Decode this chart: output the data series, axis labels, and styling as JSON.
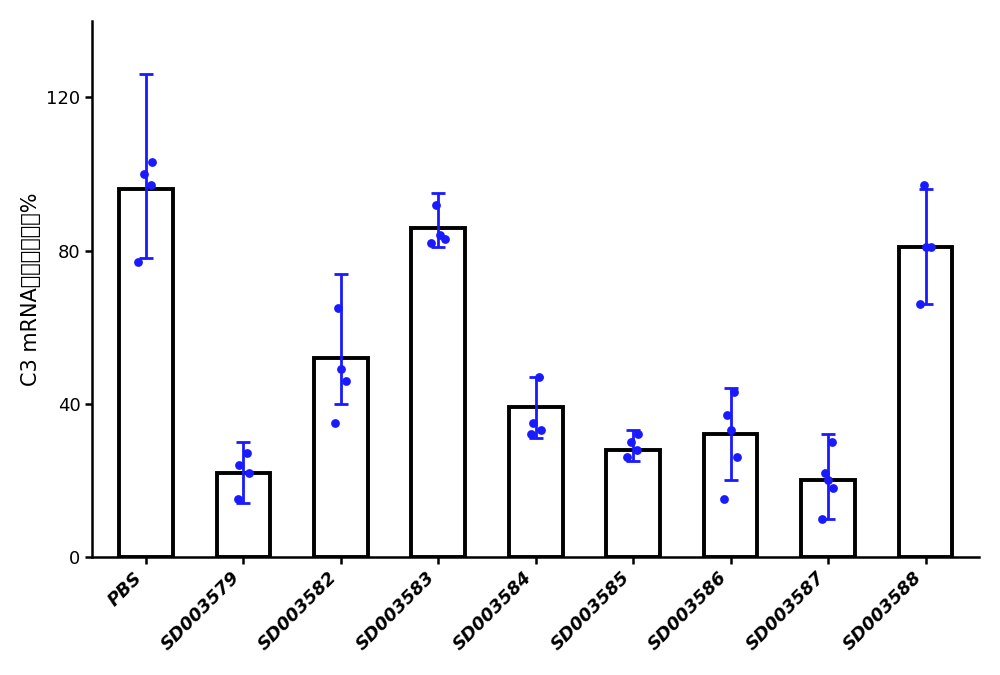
{
  "categories": [
    "PBS",
    "SD003579",
    "SD003582",
    "SD003583",
    "SD003584",
    "SD003585",
    "SD003586",
    "SD003587",
    "SD003588"
  ],
  "bar_means": [
    96,
    22,
    52,
    86,
    39,
    28,
    32,
    20,
    81
  ],
  "error_upper": [
    30,
    8,
    22,
    9,
    8,
    5,
    12,
    12,
    15
  ],
  "error_lower": [
    18,
    8,
    12,
    5,
    8,
    3,
    12,
    10,
    15
  ],
  "dot_data": [
    [
      77,
      97,
      100,
      103
    ],
    [
      15,
      22,
      24,
      27
    ],
    [
      35,
      46,
      49,
      65
    ],
    [
      82,
      83,
      84,
      92
    ],
    [
      32,
      33,
      35,
      47
    ],
    [
      26,
      28,
      30,
      32
    ],
    [
      15,
      26,
      33,
      37,
      43
    ],
    [
      10,
      18,
      20,
      22,
      30
    ],
    [
      66,
      81,
      81,
      97
    ]
  ],
  "dot_jitter": [
    [
      -0.08,
      0.05,
      -0.02,
      0.06
    ],
    [
      -0.06,
      0.06,
      -0.04,
      0.04
    ],
    [
      -0.06,
      0.05,
      0.0,
      -0.03
    ],
    [
      -0.07,
      0.07,
      0.02,
      -0.02
    ],
    [
      -0.05,
      0.05,
      -0.03,
      0.03
    ],
    [
      -0.06,
      0.04,
      -0.02,
      0.05
    ],
    [
      -0.07,
      0.06,
      0.0,
      -0.04,
      0.03
    ],
    [
      -0.06,
      0.05,
      0.0,
      -0.03,
      0.04
    ],
    [
      -0.06,
      0.06,
      0.0,
      -0.02
    ]
  ],
  "ylabel": "C3 mRNA剩余表达水平%",
  "ylim": [
    0,
    140
  ],
  "yticks": [
    0,
    40,
    80,
    120
  ],
  "bar_color": "#ffffff",
  "bar_edgecolor": "#000000",
  "dot_color": "#1a1aff",
  "errorbar_color": "#1a1aff",
  "bar_linewidth": 2.8,
  "errorbar_linewidth": 2.0,
  "errorbar_capsize": 5,
  "figure_bg": "#ffffff",
  "axes_bg": "#ffffff",
  "label_fontsize": 15,
  "tick_fontsize": 13,
  "xtick_fontsize": 13,
  "bar_width": 0.55
}
